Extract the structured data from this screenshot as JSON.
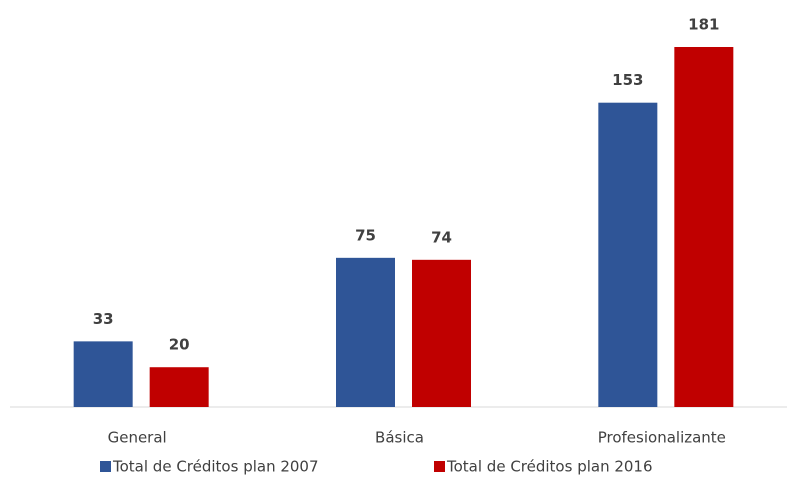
{
  "chart_data": {
    "type": "bar",
    "categories": [
      "General",
      "Básica",
      "Profesionalizante"
    ],
    "series": [
      {
        "name": "Total de Créditos plan 2007",
        "color": "#2f5597",
        "values": [
          33,
          75,
          153
        ]
      },
      {
        "name": "Total de Créditos plan 2016",
        "color": "#c00000",
        "values": [
          20,
          74,
          181
        ]
      }
    ]
  }
}
